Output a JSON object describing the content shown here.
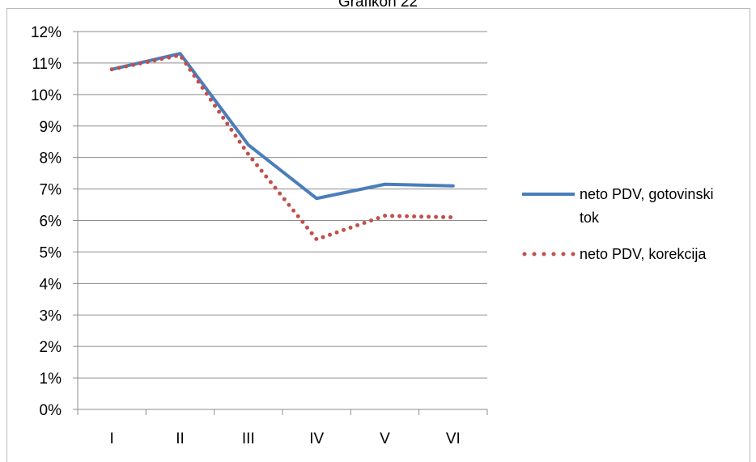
{
  "chart_data": {
    "type": "line",
    "title": "Grafikon 22",
    "categories": [
      "I",
      "II",
      "III",
      "IV",
      "V",
      "VI"
    ],
    "ylim": [
      0,
      12
    ],
    "yticks": [
      "0%",
      "1%",
      "2%",
      "3%",
      "4%",
      "5%",
      "6%",
      "7%",
      "8%",
      "9%",
      "10%",
      "11%",
      "12%"
    ],
    "grid": true,
    "legend_position": "right",
    "series": [
      {
        "name_lines": [
          "neto PDV, gotovinski",
          "tok"
        ],
        "name": "neto PDV, gotovinski tok",
        "values": [
          10.8,
          11.3,
          8.4,
          6.7,
          7.15,
          7.1
        ],
        "color": "#4a7ebb",
        "style": "solid"
      },
      {
        "name_lines": [
          "neto PDV, korekcija"
        ],
        "name": "neto PDV, korekcija",
        "values": [
          10.8,
          11.25,
          8.1,
          5.4,
          6.15,
          6.1
        ],
        "color": "#c0504d",
        "style": "dotted"
      }
    ]
  }
}
